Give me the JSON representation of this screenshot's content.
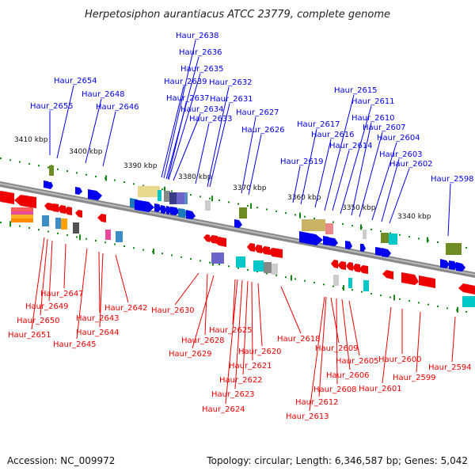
{
  "title": "Herpetosiphon aurantiacus ATCC 23779, complete genome",
  "accession": "Accession: NC_009972",
  "summary": "Topology: circular; Length: 6,346,587 bp; Genes: 5,042",
  "colors": {
    "forward": "#0000ee",
    "reverse": "#ee0000",
    "backbone": "#888888",
    "scale_dots": "#118811"
  },
  "scale": [
    "3410 kbp",
    "3400 kbp",
    "3390 kbp",
    "3380 kbp",
    "3370 kbp",
    "3360 kbp",
    "3350 kbp",
    "3340 kbp"
  ],
  "forward_labels": [
    "Haur_2654",
    "Haur_2655",
    "Haur_2648",
    "Haur_2646",
    "Haur_2638",
    "Haur_2636",
    "Haur_2635",
    "Haur_2639",
    "Haur_2632",
    "Haur_2637",
    "Haur_2631",
    "Haur_2634",
    "Haur_2633",
    "Haur_2627",
    "Haur_2626",
    "Haur_2615",
    "Haur_2611",
    "Haur_2610",
    "Haur_2617",
    "Haur_2607",
    "Haur_2616",
    "Haur_2604",
    "Haur_2614",
    "Haur_2603",
    "Haur_2619",
    "Haur_2602",
    "Haur_2598"
  ],
  "reverse_labels": [
    "Haur_2647",
    "Haur_2649",
    "Haur_2642",
    "Haur_2643",
    "Haur_2630",
    "Haur_2650",
    "Haur_2644",
    "Haur_2651",
    "Haur_2645",
    "Haur_2625",
    "Haur_2618",
    "Haur_2628",
    "Haur_2609",
    "Haur_2620",
    "Haur_2629",
    "Haur_2605",
    "Haur_2600",
    "Haur_2621",
    "Haur_2606",
    "Haur_2594",
    "Haur_2622",
    "Haur_2599",
    "Haur_2608",
    "Haur_2601",
    "Haur_2623",
    "Haur_2612",
    "Haur_2624",
    "Haur_2613"
  ]
}
